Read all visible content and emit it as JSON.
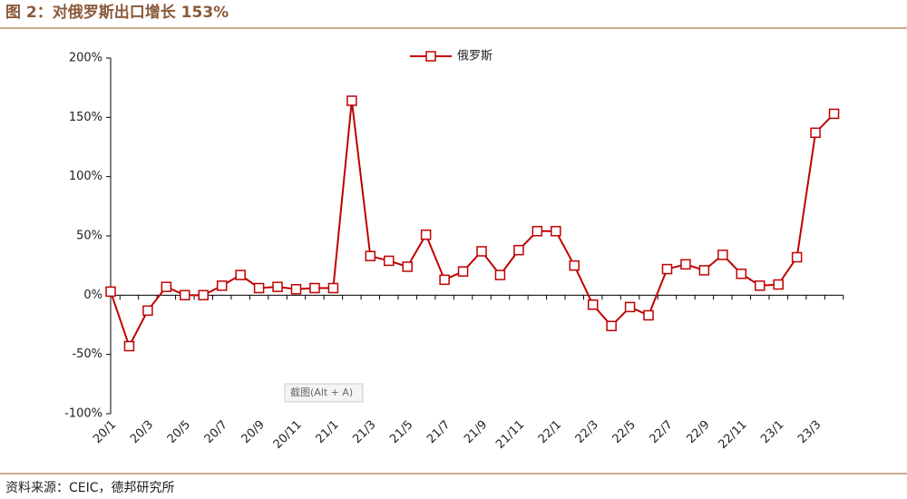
{
  "chart_data": {
    "type": "line",
    "title": "图 2：对俄罗斯出口增长 153%",
    "source": "资料来源：CEIC，德邦研究所",
    "annotation": "截图(Alt + A)",
    "categories": [
      "20/1",
      null,
      "20/3",
      null,
      "20/5",
      null,
      "20/7",
      null,
      "20/9",
      null,
      "20/11",
      null,
      "21/1",
      null,
      "21/3",
      null,
      "21/5",
      null,
      "21/7",
      null,
      "21/9",
      null,
      "21/11",
      null,
      "22/1",
      null,
      "22/3",
      null,
      "22/5",
      null,
      "22/7",
      null,
      "22/9",
      null,
      "22/11",
      null,
      "23/1",
      null,
      "23/3",
      null
    ],
    "series": [
      {
        "name": "俄罗斯",
        "color": "#c00000",
        "values": [
          3,
          -43,
          -13,
          7,
          0,
          0,
          8,
          17,
          6,
          7,
          5,
          6,
          6,
          164,
          33,
          29,
          24,
          51,
          13,
          20,
          37,
          17,
          38,
          54,
          54,
          25,
          -8,
          -26,
          -10,
          -17,
          22,
          26,
          21,
          34,
          18,
          8,
          9,
          32,
          137,
          153
        ]
      }
    ],
    "ylim": [
      -100,
      200
    ],
    "yticks": [
      {
        "value": -100,
        "label": "-100%"
      },
      {
        "value": -50,
        "label": "-50%"
      },
      {
        "value": 0,
        "label": "0%"
      },
      {
        "value": 50,
        "label": "50%"
      },
      {
        "value": 100,
        "label": "100%"
      },
      {
        "value": 150,
        "label": "150%"
      },
      {
        "value": 200,
        "label": "200%"
      }
    ],
    "legend": "top"
  }
}
